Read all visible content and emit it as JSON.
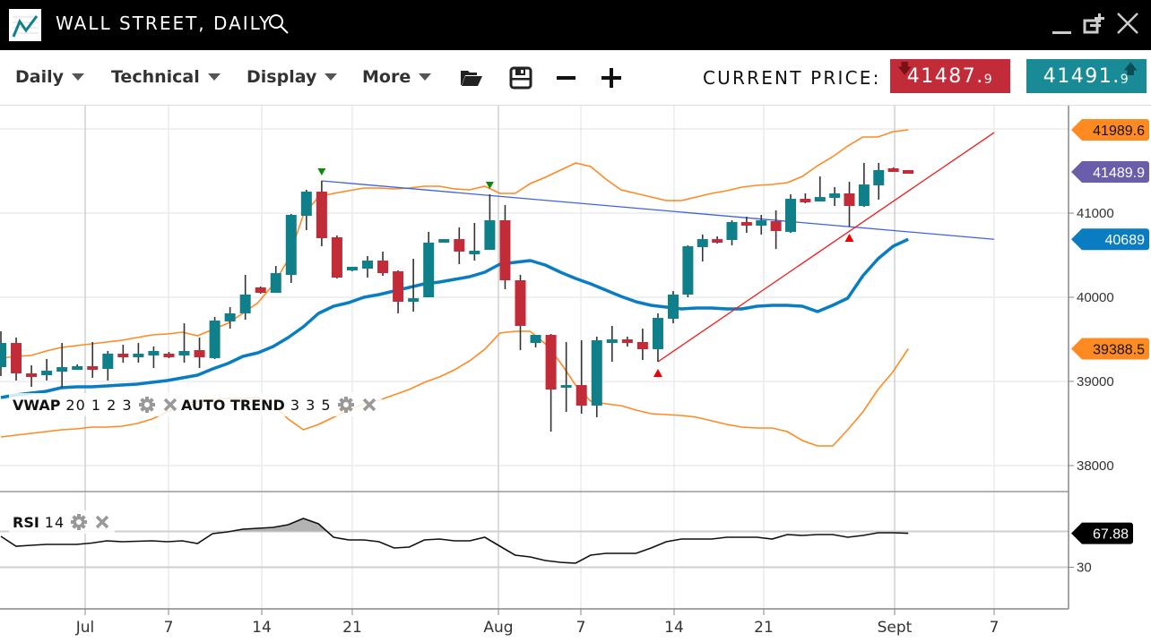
{
  "window": {
    "title": "WALL STREET, DAILY",
    "icons": [
      "chart-logo-icon",
      "search-icon",
      "minimize-icon",
      "new-window-icon",
      "close-icon"
    ]
  },
  "toolbar": {
    "menus": [
      "Daily",
      "Technical",
      "Display",
      "More"
    ],
    "icons": [
      "open-folder-icon",
      "save-icon",
      "zoom-out-icon",
      "zoom-in-icon"
    ],
    "current_price_label": "CURRENT PRICE:",
    "bid": {
      "main": "41487.",
      "decimal": "9",
      "direction": "down",
      "color": "#c22b38"
    },
    "ask": {
      "main": "41491.",
      "decimal": "9",
      "direction": "up",
      "color": "#198b96"
    }
  },
  "legends": {
    "vwap": {
      "name": "VWAP",
      "params": "20 1 2 3"
    },
    "auto_trend": {
      "name": "AUTO TREND",
      "params": "3 3 5"
    },
    "rsi": {
      "name": "RSI",
      "params": "14"
    }
  },
  "chart_data": {
    "type": "candlestick",
    "colors": {
      "up": "#0f7f89",
      "down": "#c22b38",
      "bands": "#ff8a22",
      "vwap": "#0a7dc2",
      "trend_down": "#3f63e0",
      "trend_up": "#ee1b1b"
    },
    "y_ticks": [
      41000,
      40000,
      39000,
      38000
    ],
    "y_gridlines": [
      42000,
      41000,
      40000,
      39000,
      38000
    ],
    "x_ticks": [
      "Jul",
      "7",
      "14",
      "21",
      "Aug",
      "7",
      "14",
      "21",
      "Sept",
      "7"
    ],
    "candles_ohlc": [
      [
        39170,
        39596,
        39064,
        39457
      ],
      [
        39457,
        39521,
        39011,
        39096
      ],
      [
        39096,
        39191,
        38936,
        39053
      ],
      [
        39074,
        39266,
        39011,
        39128
      ],
      [
        39117,
        39457,
        38926,
        39170
      ],
      [
        39138,
        39202,
        39138,
        39181
      ],
      [
        39181,
        39468,
        39043,
        39138
      ],
      [
        39149,
        39362,
        39011,
        39330
      ],
      [
        39330,
        39436,
        39223,
        39287
      ],
      [
        39287,
        39457,
        39223,
        39330
      ],
      [
        39309,
        39415,
        39160,
        39362
      ],
      [
        39330,
        39351,
        39277,
        39287
      ],
      [
        39309,
        39691,
        39223,
        39362
      ],
      [
        39372,
        39521,
        39160,
        39287
      ],
      [
        39277,
        39766,
        39266,
        39723
      ],
      [
        39713,
        39883,
        39628,
        39809
      ],
      [
        39809,
        40266,
        39734,
        40032
      ],
      [
        40117,
        40128,
        40043,
        40053
      ],
      [
        40053,
        40372,
        40053,
        40287
      ],
      [
        40266,
        40989,
        40170,
        40979
      ],
      [
        40968,
        41277,
        40798,
        41255
      ],
      [
        41255,
        41383,
        40606,
        40702
      ],
      [
        40713,
        40734,
        40223,
        40234
      ],
      [
        40319,
        40362,
        40309,
        40362
      ],
      [
        40340,
        40489,
        40234,
        40436
      ],
      [
        40436,
        40543,
        40255,
        40287
      ],
      [
        40309,
        40319,
        39809,
        39947
      ],
      [
        39947,
        40457,
        39830,
        39989
      ],
      [
        40000,
        40777,
        40000,
        40649
      ],
      [
        40649,
        40691,
        40649,
        40691
      ],
      [
        40691,
        40830,
        40394,
        40543
      ],
      [
        40511,
        40883,
        40436,
        40553
      ],
      [
        40564,
        41223,
        40564,
        40915
      ],
      [
        40915,
        41096,
        40096,
        40202
      ],
      [
        40202,
        40266,
        39372,
        39660
      ],
      [
        39457,
        39553,
        39404,
        39553
      ],
      [
        39553,
        39564,
        38404,
        38904
      ],
      [
        38926,
        39468,
        38638,
        38957
      ],
      [
        38957,
        39489,
        38617,
        38713
      ],
      [
        38713,
        39532,
        38574,
        39489
      ],
      [
        39457,
        39660,
        39234,
        39500
      ],
      [
        39500,
        39532,
        39415,
        39457
      ],
      [
        39468,
        39628,
        39255,
        39383
      ],
      [
        39383,
        39809,
        39234,
        39755
      ],
      [
        39745,
        40074,
        39691,
        40032
      ],
      [
        40032,
        40617,
        40000,
        40606
      ],
      [
        40596,
        40745,
        40426,
        40691
      ],
      [
        40691,
        40723,
        40638,
        40649
      ],
      [
        40681,
        40915,
        40617,
        40894
      ],
      [
        40894,
        40957,
        40766,
        40851
      ],
      [
        40851,
        40979,
        40745,
        40915
      ],
      [
        40904,
        41032,
        40574,
        40787
      ],
      [
        40777,
        41223,
        40766,
        41170
      ],
      [
        41170,
        41234,
        41117,
        41128
      ],
      [
        41138,
        41436,
        41138,
        41191
      ],
      [
        41181,
        41309,
        41085,
        41234
      ],
      [
        41234,
        41372,
        40840,
        41085
      ],
      [
        41085,
        41596,
        41074,
        41340
      ],
      [
        41330,
        41596,
        41160,
        41511
      ],
      [
        41532,
        41543,
        41489,
        41489
      ],
      [
        41511,
        41511,
        41468,
        41468
      ]
    ],
    "upper_band": [
      39277,
      39298,
      39309,
      39362,
      39404,
      39426,
      39447,
      39468,
      39489,
      39521,
      39553,
      39564,
      39585,
      39543,
      39617,
      39692,
      39809,
      39936,
      40149,
      40447,
      40979,
      41191,
      41234,
      41266,
      41298,
      41298,
      41287,
      41298,
      41319,
      41319,
      41287,
      41277,
      41319,
      41234,
      41234,
      41351,
      41426,
      41511,
      41596,
      41553,
      41404,
      41277,
      41234,
      41191,
      41149,
      41149,
      41191,
      41234,
      41266,
      41309,
      41330,
      41340,
      41362,
      41436,
      41564,
      41670,
      41798,
      41904,
      41904,
      41968,
      41989.6
    ],
    "lower_band": [
      38340,
      38362,
      38383,
      38404,
      38426,
      38436,
      38457,
      38457,
      38468,
      38500,
      38553,
      38638,
      38723,
      38766,
      38787,
      38798,
      38798,
      38809,
      38723,
      38553,
      38426,
      38489,
      38574,
      38660,
      38734,
      38777,
      38840,
      38904,
      38989,
      39053,
      39138,
      39245,
      39383,
      39574,
      39596,
      39596,
      39447,
      39223,
      38957,
      38766,
      38734,
      38713,
      38660,
      38617,
      38606,
      38596,
      38574,
      38532,
      38489,
      38457,
      38447,
      38447,
      38404,
      38298,
      38234,
      38234,
      38426,
      38638,
      38904,
      39117,
      39388.5
    ],
    "vwap": [
      38809,
      38840,
      38862,
      38883,
      38926,
      38936,
      38936,
      38947,
      38957,
      38968,
      38989,
      39011,
      39043,
      39074,
      39149,
      39213,
      39298,
      39340,
      39415,
      39521,
      39649,
      39809,
      39894,
      39936,
      40000,
      40032,
      40074,
      40117,
      40160,
      40181,
      40213,
      40245,
      40298,
      40394,
      40415,
      40436,
      40383,
      40298,
      40223,
      40160,
      40085,
      40011,
      39947,
      39904,
      39883,
      39862,
      39872,
      39872,
      39862,
      39862,
      39894,
      39904,
      39904,
      39894,
      39830,
      39904,
      39989,
      40255,
      40457,
      40606,
      40689
    ],
    "trendlines": [
      {
        "kind": "resistance",
        "start_candle": 21,
        "start_price": 41383,
        "end_price": 40689
      },
      {
        "kind": "support",
        "start_candle": 43,
        "start_price": 39234,
        "end_price": 41957
      }
    ],
    "markers": [
      {
        "candle": 21,
        "shape": "down",
        "color": "#0a8a0a"
      },
      {
        "candle": 32,
        "shape": "down",
        "color": "#0a8a0a"
      },
      {
        "candle": 43,
        "shape": "up",
        "color": "#ee0000"
      },
      {
        "candle": 56,
        "shape": "up",
        "color": "#ee0000"
      }
    ],
    "price_tags": [
      {
        "label": "41989.6",
        "value": 41989.6,
        "color": "#ff8a22",
        "text_color": "#111"
      },
      {
        "label": "41489.9",
        "value": 41489.9,
        "color": "#6a5eaa",
        "text_color": "#fff"
      },
      {
        "label": "40689",
        "value": 40689,
        "color": "#0a7dc2",
        "text_color": "#fff"
      },
      {
        "label": "39388.5",
        "value": 39388.5,
        "color": "#ff8a22",
        "text_color": "#111"
      }
    ],
    "rsi": {
      "ticks": [
        30
      ],
      "levels": [
        70,
        30
      ],
      "values": [
        64.5,
        53.5,
        54.5,
        55.5,
        55.5,
        55.5,
        57,
        59.5,
        58.5,
        59,
        59.5,
        58.5,
        59.5,
        56.5,
        67.5,
        69.5,
        72.5,
        73.5,
        74.5,
        77.5,
        84.5,
        78.5,
        63.5,
        60.5,
        60.5,
        58.5,
        51.5,
        52.5,
        60.5,
        61.5,
        59.5,
        59.5,
        63.5,
        53.5,
        43.5,
        41.5,
        37.5,
        35.5,
        34.5,
        43.5,
        45.5,
        45.5,
        45.5,
        51.5,
        58.5,
        61.5,
        61.5,
        61.5,
        63.5,
        63.5,
        63.5,
        61.5,
        66.5,
        65.5,
        66.5,
        66.5,
        63.5,
        65.5,
        68.5,
        68.5,
        67.88
      ],
      "last_label": "67.88"
    }
  }
}
